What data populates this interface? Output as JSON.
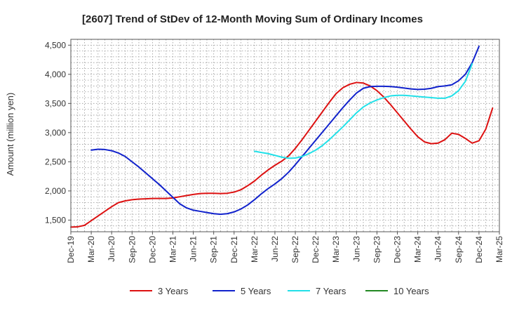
{
  "chart_data": {
    "type": "line",
    "title": "[2607]  Trend of StDev of 12-Month Moving Sum of Ordinary Incomes",
    "xlabel": "",
    "ylabel": "Amount (million yen)",
    "ylim": [
      1300,
      4600
    ],
    "xlim": [
      "Dec-19",
      "Mar-25"
    ],
    "y_ticks": [
      1500,
      2000,
      2500,
      3000,
      3500,
      4000,
      4500
    ],
    "y_tick_labels": [
      "1,500",
      "2,000",
      "2,500",
      "3,000",
      "3,500",
      "4,000",
      "4,500"
    ],
    "x_ticks": [
      "Dec-19",
      "Mar-20",
      "Jun-20",
      "Sep-20",
      "Dec-20",
      "Mar-21",
      "Jun-21",
      "Sep-21",
      "Dec-21",
      "Mar-22",
      "Jun-22",
      "Sep-22",
      "Dec-22",
      "Mar-23",
      "Jun-23",
      "Sep-23",
      "Dec-23",
      "Mar-24",
      "Jun-24",
      "Sep-24",
      "Dec-24",
      "Mar-25"
    ],
    "grid": true,
    "legend_position": "bottom",
    "series": [
      {
        "name": "3 Years",
        "color": "#dd1111",
        "start": "Dec-19",
        "values": [
          1380,
          1385,
          1410,
          1490,
          1570,
          1650,
          1730,
          1800,
          1830,
          1850,
          1860,
          1865,
          1870,
          1870,
          1870,
          1880,
          1900,
          1920,
          1940,
          1955,
          1960,
          1960,
          1955,
          1960,
          1980,
          2020,
          2090,
          2170,
          2270,
          2360,
          2440,
          2510,
          2600,
          2730,
          2880,
          3040,
          3200,
          3360,
          3520,
          3670,
          3770,
          3830,
          3860,
          3850,
          3800,
          3720,
          3610,
          3480,
          3340,
          3200,
          3060,
          2930,
          2840,
          2810,
          2820,
          2880,
          2990,
          2970,
          2900,
          2820,
          2860,
          3060,
          3420
        ]
      },
      {
        "name": "5 Years",
        "color": "#1122cc",
        "start": "Mar-20",
        "values": [
          2700,
          2715,
          2710,
          2690,
          2650,
          2590,
          2500,
          2410,
          2310,
          2210,
          2110,
          2000,
          1890,
          1780,
          1710,
          1670,
          1650,
          1630,
          1610,
          1600,
          1610,
          1640,
          1690,
          1760,
          1850,
          1950,
          2040,
          2120,
          2210,
          2320,
          2450,
          2590,
          2730,
          2870,
          3010,
          3150,
          3290,
          3430,
          3560,
          3680,
          3760,
          3790,
          3795,
          3795,
          3790,
          3780,
          3765,
          3750,
          3740,
          3745,
          3760,
          3790,
          3800,
          3820,
          3890,
          4000,
          4200,
          4480
        ]
      },
      {
        "name": "7 Years",
        "color": "#22e0e8",
        "start": "Mar-22",
        "values": [
          2680,
          2660,
          2640,
          2610,
          2580,
          2560,
          2565,
          2590,
          2640,
          2700,
          2780,
          2880,
          2990,
          3100,
          3220,
          3340,
          3440,
          3510,
          3560,
          3600,
          3630,
          3640,
          3640,
          3630,
          3620,
          3610,
          3600,
          3590,
          3590,
          3630,
          3720,
          3880,
          4180
        ]
      },
      {
        "name": "10 Years",
        "color": "#228822",
        "start": "Dec-24",
        "values": []
      }
    ]
  }
}
